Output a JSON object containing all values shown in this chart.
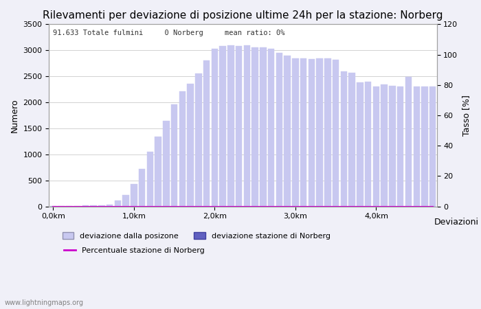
{
  "title": "Rilevamenti per deviazione di posizione ultime 24h per la stazione: Norberg",
  "subtitle": "91.633 Totale fulmini     0 Norberg     mean ratio: 0%",
  "xlabel": "Deviazioni",
  "ylabel_left": "Numero",
  "ylabel_right": "Tasso [%]",
  "x_tick_labels": [
    "0,0km",
    "1,0km",
    "2,0km",
    "3,0km",
    "4,0km"
  ],
  "x_tick_positions": [
    0,
    10,
    20,
    30,
    40
  ],
  "bar_values": [
    5,
    8,
    10,
    12,
    15,
    18,
    25,
    30,
    120,
    220,
    430,
    720,
    1050,
    1340,
    1640,
    1960,
    2210,
    2360,
    2550,
    2810,
    3030,
    3080,
    3100,
    3080,
    3100,
    3060,
    3050,
    3030,
    2950,
    2900,
    2840,
    2840,
    2830,
    2840,
    2840,
    2820,
    2600,
    2570,
    2380,
    2390,
    2300,
    2340,
    2320,
    2310,
    2490,
    2310,
    2300,
    2310
  ],
  "norberg_values": [
    0,
    0,
    0,
    0,
    0,
    0,
    0,
    0,
    0,
    0,
    0,
    0,
    0,
    0,
    0,
    0,
    0,
    0,
    0,
    0,
    0,
    0,
    0,
    0,
    0,
    0,
    0,
    0,
    0,
    0,
    0,
    0,
    0,
    0,
    0,
    0,
    0,
    0,
    0,
    0,
    0,
    0,
    0,
    0,
    0,
    0,
    0,
    0
  ],
  "ratio_values": [
    0,
    0,
    0,
    0,
    0,
    0,
    0,
    0,
    0,
    0,
    0,
    0,
    0,
    0,
    0,
    0,
    0,
    0,
    0,
    0,
    0,
    0,
    0,
    0,
    0,
    0,
    0,
    0,
    0,
    0,
    0,
    0,
    0,
    0,
    0,
    0,
    0,
    0,
    0,
    0,
    0,
    0,
    0,
    0,
    0,
    0,
    0,
    0
  ],
  "bar_color": "#c8c8f0",
  "norberg_bar_color": "#6060c0",
  "ratio_line_color": "#cc00cc",
  "ylim_left": [
    0,
    3500
  ],
  "ylim_right": [
    0,
    120
  ],
  "background_color": "#f0f0f8",
  "plot_bg_color": "#ffffff",
  "grid_color": "#c0c0c0",
  "title_fontsize": 11,
  "axis_fontsize": 9,
  "tick_fontsize": 8,
  "watermark": "www.lightningmaps.org",
  "legend_items": [
    {
      "label": "deviazione dalla posizone",
      "color": "#c8c8f0"
    },
    {
      "label": "deviazione stazione di Norberg",
      "color": "#6060c0"
    },
    {
      "label": "Percentuale stazione di Norberg",
      "color": "#cc00cc",
      "linestyle": "-"
    }
  ]
}
